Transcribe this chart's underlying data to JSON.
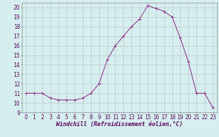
{
  "x": [
    0,
    1,
    2,
    3,
    4,
    5,
    6,
    7,
    8,
    9,
    10,
    11,
    12,
    13,
    14,
    15,
    16,
    17,
    18,
    19,
    20,
    21,
    22,
    23
  ],
  "y": [
    11.0,
    11.0,
    11.0,
    10.5,
    10.3,
    10.3,
    10.3,
    10.5,
    11.0,
    12.0,
    14.5,
    16.0,
    17.0,
    18.0,
    18.8,
    20.2,
    19.9,
    19.6,
    19.0,
    16.8,
    14.3,
    11.0,
    11.0,
    9.5
  ],
  "line_color": "#993399",
  "marker": "+",
  "marker_size": 3,
  "xlabel": "Windchill (Refroidissement éolien,°C)",
  "xlabel_fontsize": 6.0,
  "background_color": "#d5efef",
  "grid_color": "#bbbbbb",
  "xlim": [
    -0.5,
    23.5
  ],
  "ylim": [
    9,
    20.5
  ],
  "yticks": [
    9,
    10,
    11,
    12,
    13,
    14,
    15,
    16,
    17,
    18,
    19,
    20
  ],
  "xticks": [
    0,
    1,
    2,
    3,
    4,
    5,
    6,
    7,
    8,
    9,
    10,
    11,
    12,
    13,
    14,
    15,
    16,
    17,
    18,
    19,
    20,
    21,
    22,
    23
  ],
  "tick_fontsize": 5.5,
  "border_color": "#993399",
  "spine_color": "#888888"
}
